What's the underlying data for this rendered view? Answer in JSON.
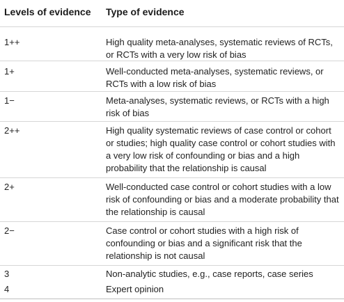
{
  "table": {
    "headers": [
      "Levels of evidence",
      "Type of evidence"
    ],
    "rows": [
      {
        "level": "1++",
        "type": "High quality meta-analyses, systematic reviews of RCTs, or RCTs with a very low risk of bias"
      },
      {
        "level": "1+",
        "type": "Well-conducted meta-analyses, systematic reviews, or RCTs with a low risk of bias"
      },
      {
        "level": "1−",
        "type": "Meta-analyses, systematic reviews, or RCTs with a high risk of bias"
      },
      {
        "level": "2++",
        "type": "High quality systematic reviews of case control or cohort or studies; high quality case control or cohort studies with a very low risk of confounding or bias and a high probability that the relationship is causal"
      },
      {
        "level": "2+",
        "type": "Well-conducted case control or cohort studies with a low risk of confounding or bias and a moderate probability that the relationship is causal"
      },
      {
        "level": "2−",
        "type": "Case control or cohort studies with a high risk of confounding or bias and a significant risk that the relationship is not causal"
      },
      {
        "level": "3",
        "type": "Non-analytic studies, e.g., case reports, case series"
      },
      {
        "level": "4",
        "type": "Expert opinion"
      }
    ]
  }
}
